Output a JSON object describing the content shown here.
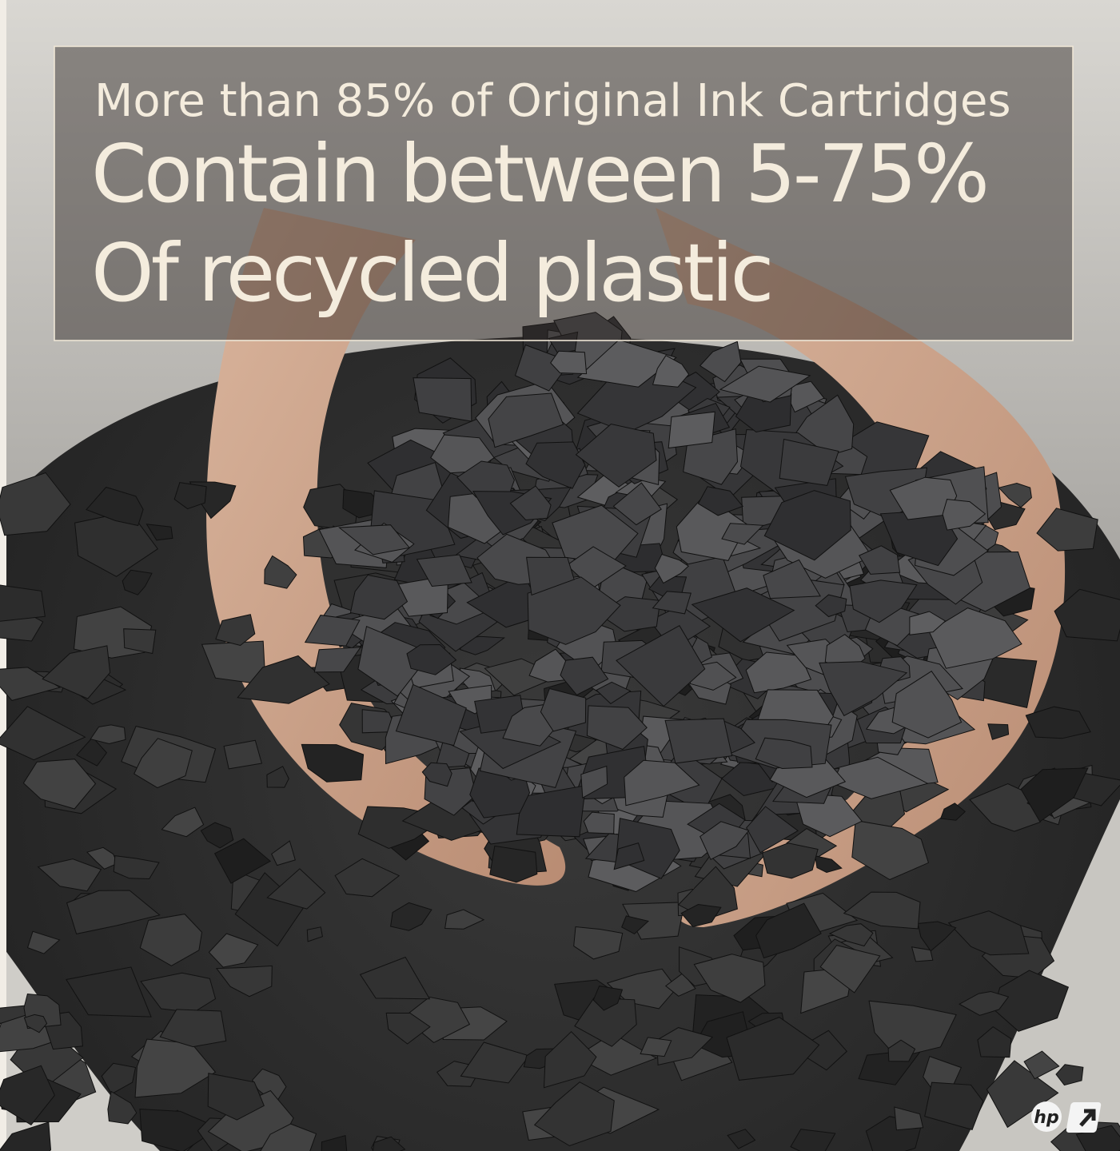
{
  "headline": {
    "line1": "More than 85% of Original Ink Cartridges",
    "line2": "Contain between 5-75%",
    "line3": "Of recycled plastic"
  },
  "logo": {
    "text": "hp"
  }
}
